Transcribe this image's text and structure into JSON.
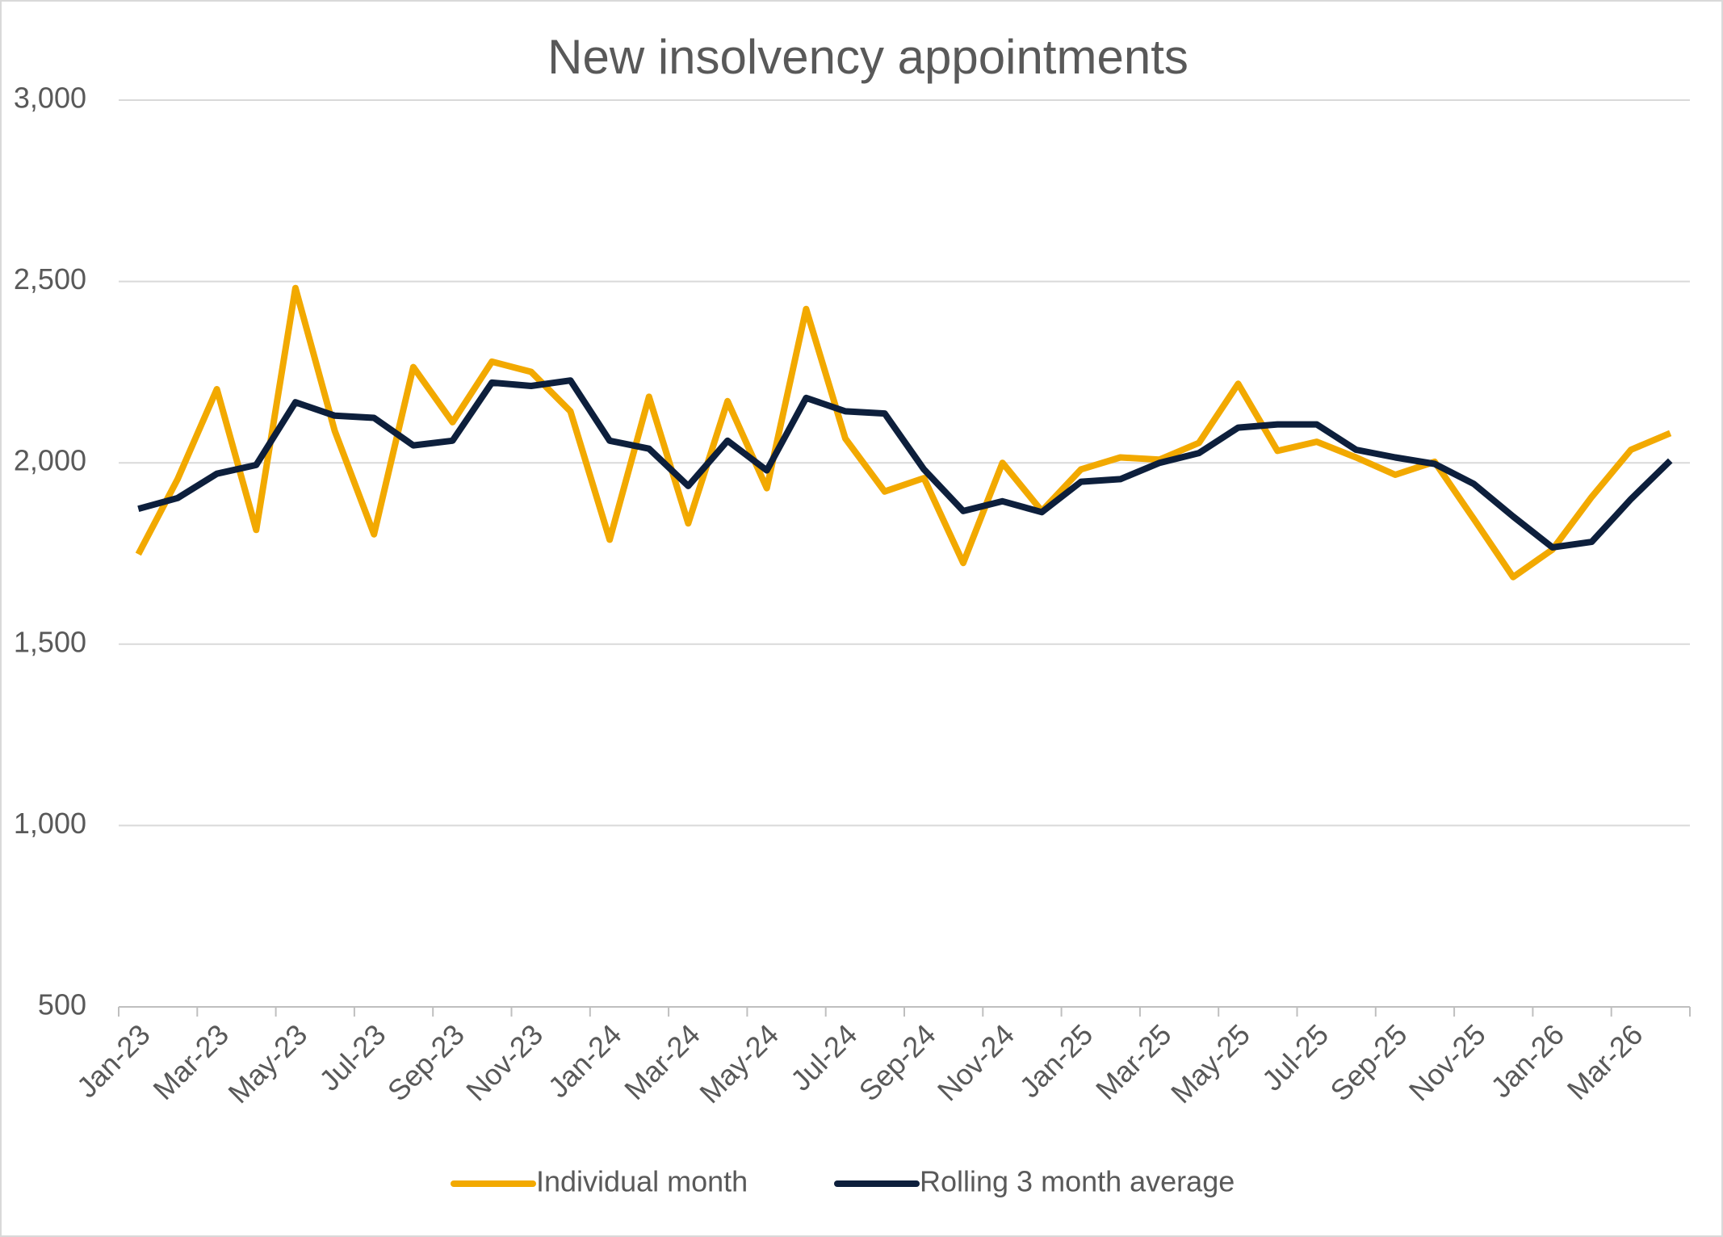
{
  "chart_data": {
    "type": "line",
    "title": "New insolvency appointments",
    "categories": [
      "Jan-23",
      null,
      "Mar-23",
      null,
      "May-23",
      null,
      "Jul-23",
      null,
      "Sep-23",
      null,
      "Nov-23",
      null,
      "Jan-24",
      null,
      "Mar-24",
      null,
      "May-24",
      null,
      "Jul-24",
      null,
      "Sep-24",
      null,
      "Nov-24",
      null,
      "Jan-25",
      null,
      "Mar-25",
      null,
      "May-25",
      null,
      "Jul-25",
      null,
      "Sep-25",
      null,
      "Nov-25",
      null,
      "Jan-26",
      null,
      "Mar-26",
      null
    ],
    "series": [
      {
        "name": "Individual month",
        "color": "#f2a900",
        "values": [
          1748,
          1955,
          2203,
          1815,
          2482,
          2088,
          1803,
          2264,
          2112,
          2279,
          2251,
          2142,
          1788,
          2182,
          1833,
          2170,
          1930,
          2424,
          2067,
          1921,
          1958,
          1724,
          2000,
          1867,
          1982,
          2015,
          2009,
          2055,
          2218,
          2033,
          2058,
          2015,
          1967,
          2003,
          1845,
          1685,
          1761,
          1906,
          2036,
          2082
        ]
      },
      {
        "name": "Rolling 3 month average",
        "color": "#0d1f3c",
        "values": [
          1873,
          1903,
          1970,
          1994,
          2167,
          2130,
          2124,
          2048,
          2061,
          2221,
          2212,
          2227,
          2061,
          2039,
          1936,
          2061,
          1979,
          2179,
          2142,
          2136,
          1982,
          1867,
          1894,
          1864,
          1948,
          1955,
          2000,
          2027,
          2097,
          2106,
          2106,
          2036,
          2015,
          1997,
          1942,
          1852,
          1767,
          1782,
          1900,
          2006
        ]
      }
    ],
    "ylim": [
      500,
      3000
    ],
    "yticks": [
      {
        "value": 500,
        "label": "500"
      },
      {
        "value": 1000,
        "label": "1,000"
      },
      {
        "value": 1500,
        "label": "1,500"
      },
      {
        "value": 2000,
        "label": "2,000"
      },
      {
        "value": 2500,
        "label": "2,500"
      },
      {
        "value": 3000,
        "label": "3,000"
      }
    ],
    "grid": true,
    "legend": "bottom"
  }
}
